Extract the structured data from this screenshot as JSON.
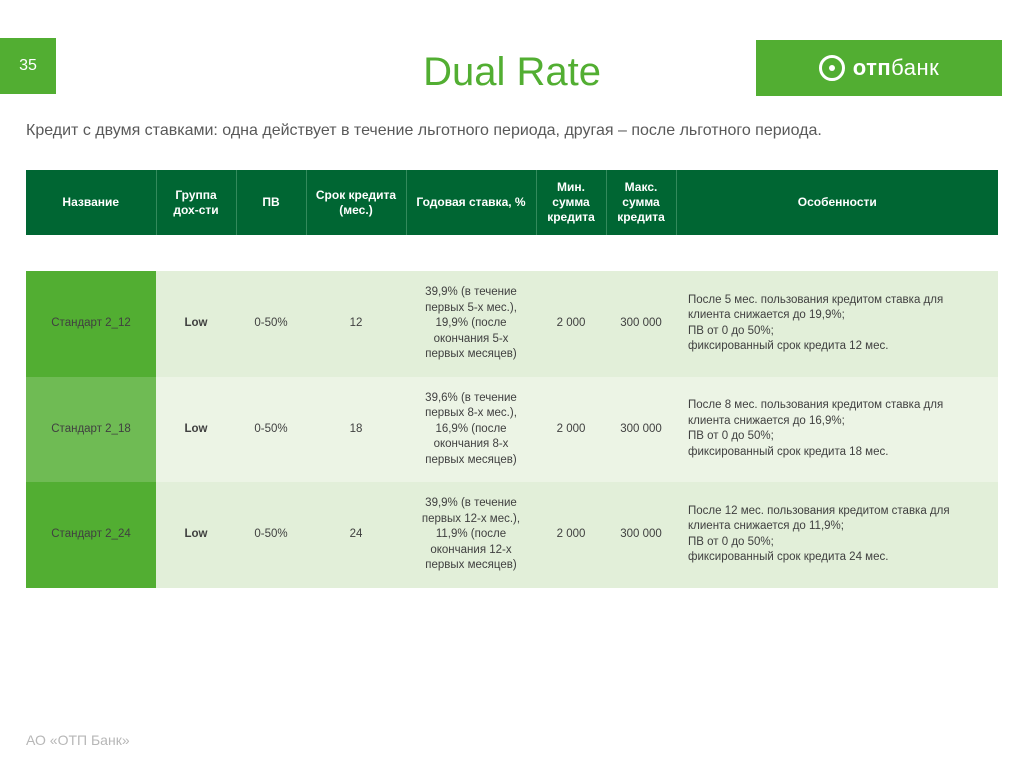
{
  "page_number": "35",
  "title": "Dual Rate",
  "brand": {
    "name_bold": "отп",
    "name_light": "банк"
  },
  "subtitle": "Кредит с двумя ставками: одна действует в течение льготного периода, другая – после льготного периода.",
  "footer": "АО «ОТП Банк»",
  "colors": {
    "accent": "#52ae32",
    "header_bg": "#006633",
    "row_a": "#e2efd9",
    "row_b": "#ecf4e5",
    "name_a": "#52ae32",
    "name_b": "#6fbb54",
    "text": "#404040",
    "footer_text": "#b7b7b7"
  },
  "table": {
    "columns": [
      "Название",
      "Группа дох-сти",
      "ПВ",
      "Срок кредита (мес.)",
      "Годовая ставка, %",
      "Мин. сумма кредита",
      "Макс. сумма кредита",
      "Особенности"
    ],
    "rows": [
      {
        "name": "Стандарт 2_12",
        "group": "Low",
        "pv": "0-50%",
        "term": "12",
        "rate": "39,9% (в течение первых 5-х мес.), 19,9% (после окончания 5-х первых месяцев)",
        "min": "2 000",
        "max": "300 000",
        "features": "После 5 мес. пользования кредитом ставка для клиента снижается до 19,9%;\n ПВ от 0 до 50%;\n      фиксированный срок кредита 12 мес."
      },
      {
        "name": "Стандарт 2_18",
        "group": "Low",
        "pv": "0-50%",
        "term": "18",
        "rate": "39,6% (в течение первых 8-х мес.), 16,9% (после окончания 8-х первых месяцев)",
        "min": "2 000",
        "max": "300 000",
        "features": "После 8 мес. пользования кредитом ставка для клиента снижается до 16,9%;\n ПВ от 0 до 50%;\n      фиксированный срок кредита 18 мес."
      },
      {
        "name": "Стандарт 2_24",
        "group": "Low",
        "pv": "0-50%",
        "term": "24",
        "rate": "39,9% (в течение первых 12-х мес.), 11,9% (после окончания 12-х первых месяцев)",
        "min": "2 000",
        "max": "300 000",
        "features": "После 12 мес. пользования кредитом ставка для клиента снижается до 11,9%;\n ПВ от 0 до 50%;\n      фиксированный срок кредита 24 мес."
      }
    ]
  }
}
